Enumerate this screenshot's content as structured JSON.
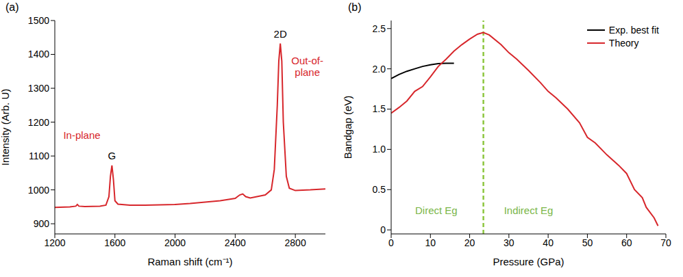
{
  "chart_data": [
    {
      "type": "line",
      "title": "(a)",
      "x_label": "Raman shift (cm⁻¹)",
      "y_label": "Intensity (Arb. U)",
      "xlim": [
        1200,
        3000
      ],
      "xticks": [
        1200,
        1600,
        2000,
        2400,
        2800
      ],
      "ylim": [
        870,
        1500
      ],
      "yticks": [
        900,
        1000,
        1100,
        1200,
        1300,
        1400,
        1500
      ],
      "series": [
        {
          "color": "#d7262b",
          "x": [
            1200,
            1300,
            1340,
            1350,
            1360,
            1400,
            1500,
            1540,
            1560,
            1570,
            1580,
            1590,
            1600,
            1620,
            1700,
            1800,
            1900,
            2000,
            2100,
            2200,
            2300,
            2400,
            2430,
            2450,
            2470,
            2500,
            2600,
            2640,
            2660,
            2680,
            2690,
            2700,
            2710,
            2720,
            2740,
            2760,
            2800,
            2900,
            3000
          ],
          "values": [
            948,
            950,
            952,
            957,
            952,
            951,
            952,
            955,
            980,
            1040,
            1072,
            1030,
            968,
            958,
            955,
            955,
            956,
            957,
            960,
            964,
            968,
            975,
            985,
            988,
            980,
            976,
            985,
            1000,
            1060,
            1250,
            1380,
            1432,
            1380,
            1200,
            1040,
            1005,
            998,
            1000,
            1003
          ]
        }
      ],
      "annotations": [
        {
          "text": "G",
          "x": 1580,
          "y": 1090,
          "color": "#000000"
        },
        {
          "text": "2D",
          "x": 2700,
          "y": 1450,
          "color": "#000000"
        },
        {
          "text": "In-plane",
          "x": 1380,
          "y": 1150,
          "color": "#d7262b"
        },
        {
          "text": "Out-of-plane",
          "x": 2880,
          "y": 1370,
          "color": "#d7262b"
        }
      ]
    },
    {
      "type": "line",
      "title": "(b)",
      "x_label": "Pressure (GPa)",
      "y_label": "Bandgap (eV)",
      "xlim": [
        0,
        70
      ],
      "xticks": [
        0,
        10,
        20,
        30,
        40,
        50,
        60,
        70
      ],
      "ylim": [
        -0.05,
        2.6
      ],
      "yticks": [
        0,
        0.5,
        {
          "value": 1,
          "label": "1.0"
        },
        1.5,
        {
          "value": 2,
          "label": "2.0"
        },
        2.5
      ],
      "legend": "upper right",
      "series": [
        {
          "name": "Exp. best fit",
          "color": "#000000",
          "x": [
            0,
            2,
            4,
            6,
            8,
            10,
            12,
            14,
            16
          ],
          "values": [
            1.88,
            1.93,
            1.97,
            2.0,
            2.03,
            2.05,
            2.065,
            2.07,
            2.07
          ]
        },
        {
          "name": "Theory",
          "color": "#d7262b",
          "x": [
            0,
            2,
            4,
            6,
            8,
            10,
            12,
            14,
            16,
            18,
            20,
            22,
            23.5,
            25,
            28,
            30,
            32,
            35,
            38,
            40,
            42,
            45,
            48,
            50,
            52,
            55,
            58,
            60,
            62,
            64,
            65,
            67,
            68
          ],
          "values": [
            1.45,
            1.52,
            1.6,
            1.72,
            1.78,
            1.9,
            2.03,
            2.12,
            2.22,
            2.3,
            2.37,
            2.43,
            2.45,
            2.42,
            2.3,
            2.2,
            2.12,
            1.98,
            1.83,
            1.72,
            1.64,
            1.5,
            1.33,
            1.15,
            1.08,
            0.93,
            0.8,
            0.7,
            0.5,
            0.4,
            0.28,
            0.15,
            0.05
          ]
        }
      ],
      "vlines": [
        {
          "x": 23.5,
          "color": "#8dc63f",
          "line_style": "dashed"
        }
      ],
      "annotations": [
        {
          "text": "Direct Eg",
          "x": 11.5,
          "y": 0.2,
          "color": "#7ab648"
        },
        {
          "text": "Indirect Eg",
          "x": 35,
          "y": 0.2,
          "color": "#7ab648"
        }
      ]
    }
  ]
}
